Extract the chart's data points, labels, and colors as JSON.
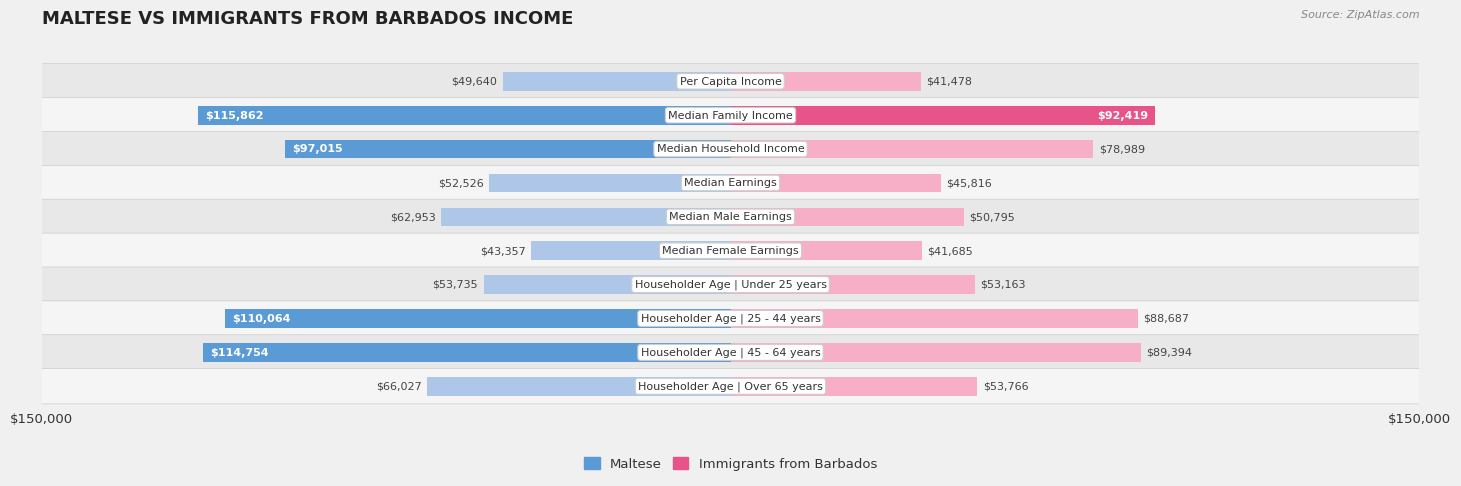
{
  "title": "MALTESE VS IMMIGRANTS FROM BARBADOS INCOME",
  "source": "Source: ZipAtlas.com",
  "categories": [
    "Per Capita Income",
    "Median Family Income",
    "Median Household Income",
    "Median Earnings",
    "Median Male Earnings",
    "Median Female Earnings",
    "Householder Age | Under 25 years",
    "Householder Age | 25 - 44 years",
    "Householder Age | 45 - 64 years",
    "Householder Age | Over 65 years"
  ],
  "maltese_values": [
    49640,
    115862,
    97015,
    52526,
    62953,
    43357,
    53735,
    110064,
    114754,
    66027
  ],
  "barbados_values": [
    41478,
    92419,
    78989,
    45816,
    50795,
    41685,
    53163,
    88687,
    89394,
    53766
  ],
  "maltese_labels": [
    "$49,640",
    "$115,862",
    "$97,015",
    "$52,526",
    "$62,953",
    "$43,357",
    "$53,735",
    "$110,064",
    "$114,754",
    "$66,027"
  ],
  "barbados_labels": [
    "$41,478",
    "$92,419",
    "$78,989",
    "$45,816",
    "$50,795",
    "$41,685",
    "$53,163",
    "$88,687",
    "$89,394",
    "$53,766"
  ],
  "maltese_color_light": "#aec6e8",
  "maltese_color_dark": "#5b9bd5",
  "barbados_color_light": "#f7afc8",
  "barbados_color_dark": "#e8538a",
  "max_value": 150000,
  "x_label_left": "$150,000",
  "x_label_right": "$150,000",
  "legend_maltese": "Maltese",
  "legend_barbados": "Immigrants from Barbados",
  "bg_color": "#f0f0f0",
  "row_colors": [
    "#e8e8e8",
    "#f5f5f5"
  ],
  "label_inside_threshold": 90000,
  "title_fontsize": 13,
  "label_fontsize": 8,
  "cat_fontsize": 8
}
